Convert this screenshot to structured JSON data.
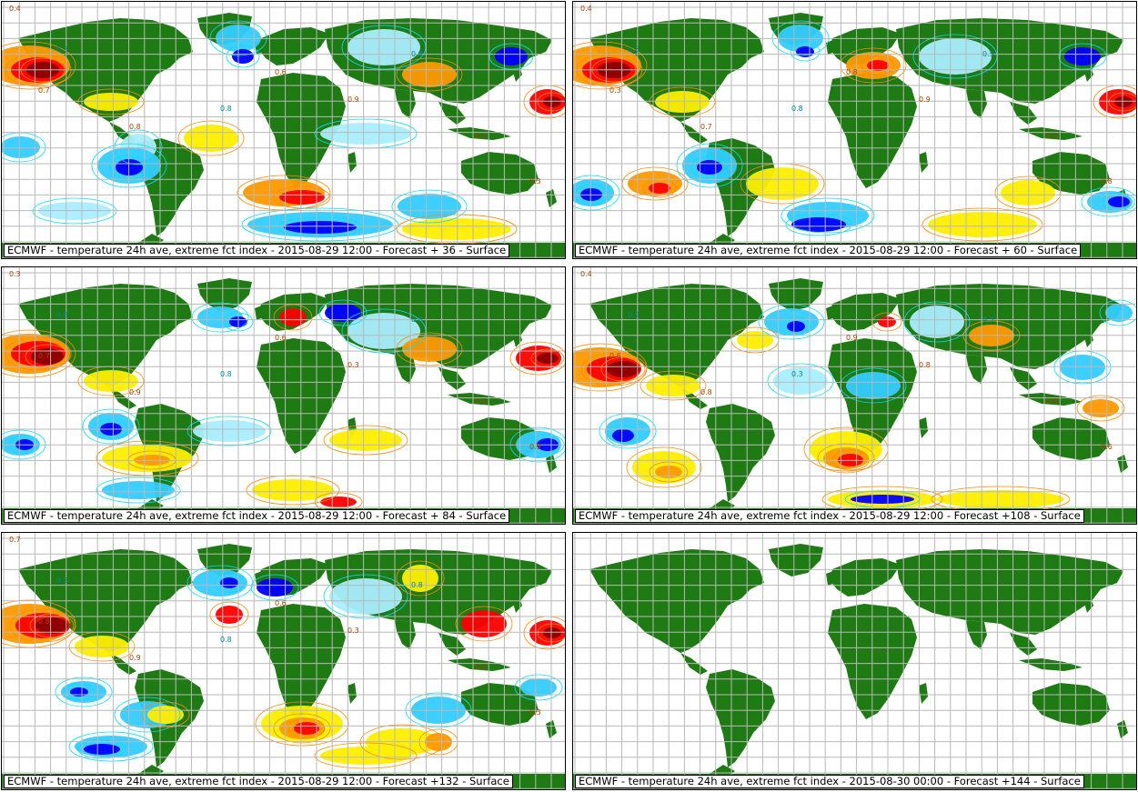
{
  "colors": {
    "land": "#1e7a12",
    "ocean": "#ffffff",
    "grid": "#b8b8b8",
    "darkred": "#8b0000",
    "red": "#ff0000",
    "orange": "#ff9900",
    "yellow": "#ffee00",
    "lightblue": "#33ccff",
    "paleblue": "#aaeeff",
    "blue": "#0000ff",
    "contour_orange": "#ff8800",
    "contour_cyan": "#00e0ff"
  },
  "panels": [
    {
      "caption": "ECMWF - temperature 24h ave, extreme fct index - 2015-08-29 12:00 - Forecast + 36 - Surface",
      "has_anomalies": true,
      "labels": [
        "0.4",
        "0.3",
        "0.7",
        "0.8",
        "0.8",
        "0.6",
        "0.9",
        "0.8",
        "0.3",
        "0.3"
      ]
    },
    {
      "caption": "ECMWF - temperature 24h ave, extreme fct index - 2015-08-29 12:00 - Forecast + 60 - Surface",
      "has_anomalies": true,
      "labels": [
        "0.4",
        "0.6",
        "0.3",
        "0.7",
        "0.8",
        "0.8",
        "0.9",
        "0.5",
        "0.3",
        "0.8"
      ]
    },
    {
      "caption": "ECMWF - temperature 24h ave, extreme fct index - 2015-08-29 12:00 - Forecast + 84 - Surface",
      "has_anomalies": true,
      "labels": [
        "0.3",
        "0.8",
        "0.7",
        "0.9",
        "0.8",
        "0.6",
        "0.3",
        "0.8",
        "0.3",
        "0.9"
      ]
    },
    {
      "caption": "ECMWF - temperature 24h ave, extreme fct index - 2015-08-29 12:00 - Forecast +108 - Surface",
      "has_anomalies": true,
      "labels": [
        "0.4",
        "0.9",
        "0.6",
        "0.8",
        "0.3",
        "0.9",
        "0.8",
        "0.3",
        "0.8",
        "0.6"
      ]
    },
    {
      "caption": "ECMWF - temperature 24h ave, extreme fct index - 2015-08-29 12:00 - Forecast +132 - Surface",
      "has_anomalies": true,
      "labels": [
        "0.7",
        "0.3",
        "0.8",
        "0.9",
        "0.8",
        "0.6",
        "0.3",
        "0.8",
        "0.9",
        "0.3"
      ]
    },
    {
      "caption": "ECMWF - temperature 24h ave, extreme fct index - 2015-08-30 00:00 - Forecast +144 - Surface",
      "has_anomalies": false,
      "labels": []
    }
  ]
}
